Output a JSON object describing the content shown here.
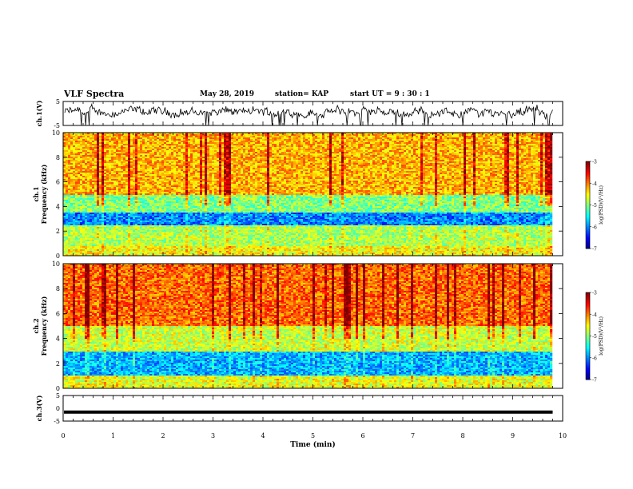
{
  "header": {
    "title": "VLF Spectra",
    "date": "May 28, 2019",
    "station": "station= KAP",
    "start_ut": "start  UT  =   9  : 30 : 1"
  },
  "colors": {
    "low": "#00008f",
    "mid": "#00ff00",
    "high": "#ff0000",
    "trace": "#000000"
  },
  "chart_data": [
    {
      "type": "line",
      "name": "ch1-voltage",
      "ylabel": "ch.1(V)",
      "ylim": [
        -5,
        5
      ],
      "yticks": [
        "5",
        "-5"
      ],
      "xlim": [
        0,
        10
      ],
      "description_series": "noisy waveform around ~0.5 V",
      "mean": 0.5,
      "amplitude": 2.5
    },
    {
      "type": "heatmap",
      "name": "ch1-spectrogram",
      "ylabel_line1": "ch.1",
      "ylabel_line2": "Frequency  (kHz)",
      "ylim": [
        0,
        10
      ],
      "yticks": [
        "0",
        "2",
        "4",
        "6",
        "8",
        "10"
      ],
      "xlim": [
        0,
        9.8
      ],
      "bands": [
        {
          "from": 0,
          "to": 0.8,
          "level": -4.5
        },
        {
          "from": 0.8,
          "to": 2.5,
          "level": -4.8
        },
        {
          "from": 2.5,
          "to": 3.5,
          "level": -6.0
        },
        {
          "from": 3.5,
          "to": 5.0,
          "level": -5.0
        },
        {
          "from": 5.0,
          "to": 10,
          "level": -4.2
        }
      ],
      "colorbar": {
        "label": "log(PSD)(V²/Hz)",
        "ticks": [
          "-3",
          "-4",
          "-5",
          "-6",
          "-7"
        ],
        "range": [
          -7,
          -3
        ]
      }
    },
    {
      "type": "heatmap",
      "name": "ch2-spectrogram",
      "ylabel_line1": "ch.2",
      "ylabel_line2": "Frequency  (kHz)",
      "ylim": [
        0,
        10
      ],
      "yticks": [
        "0",
        "2",
        "4",
        "6",
        "8",
        "10"
      ],
      "xlim": [
        0,
        9.8
      ],
      "bands": [
        {
          "from": 0,
          "to": 1.0,
          "level": -4.6
        },
        {
          "from": 1.0,
          "to": 3.0,
          "level": -5.8
        },
        {
          "from": 3.0,
          "to": 5.0,
          "level": -4.7
        },
        {
          "from": 5.0,
          "to": 10,
          "level": -3.9
        }
      ],
      "colorbar": {
        "label": "log(PSD)(V²/Hz)",
        "ticks": [
          "-3",
          "-4",
          "-5",
          "-6",
          "-7"
        ],
        "range": [
          -7,
          -3
        ]
      }
    },
    {
      "type": "line",
      "name": "ch3-voltage",
      "ylabel": "ch.3(V)",
      "ylim": [
        -5,
        5
      ],
      "yticks": [
        "5",
        "0",
        "-5"
      ],
      "xlim": [
        0,
        10
      ],
      "constant_value": -1.5
    }
  ],
  "xaxis": {
    "label": "Time  (min)",
    "ticks": [
      "0",
      "1",
      "2",
      "3",
      "4",
      "5",
      "6",
      "7",
      "8",
      "9",
      "10"
    ]
  }
}
